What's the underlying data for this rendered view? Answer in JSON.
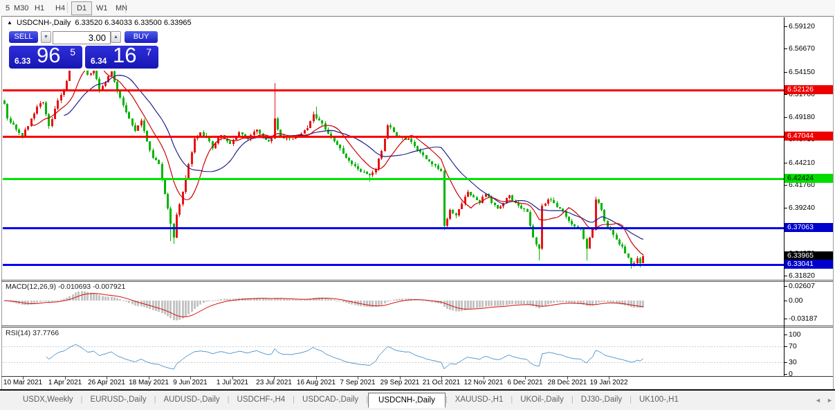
{
  "toolbar": {
    "timeframes": [
      {
        "label": "5",
        "active": false
      },
      {
        "label": "M30",
        "active": false
      },
      {
        "label": "H1",
        "active": false
      },
      {
        "label": "H4",
        "active": false
      },
      {
        "label": "D1",
        "active": true
      },
      {
        "label": "W1",
        "active": false
      },
      {
        "label": "MN",
        "active": false
      }
    ]
  },
  "header": {
    "collapse_icon": "▲",
    "symbol_title": "USDCNH-,Daily",
    "ohlc_quote": "6.33520 6.34033 6.33500 6.33965"
  },
  "trade_panel": {
    "sell_label": "SELL",
    "buy_label": "BUY",
    "volume": "3.00",
    "spin_down_icon": "▼",
    "spin_up_icon": "▲",
    "sell_price_small": "6.33",
    "sell_price_big": "96",
    "sell_price_sup": "5",
    "buy_price_small": "6.34",
    "buy_price_big": "16",
    "buy_price_sup": "7"
  },
  "price_axis": {
    "ticks": [
      "6.59120",
      "6.56670",
      "6.54150",
      "6.51700",
      "6.49180",
      "6.46730",
      "6.44210",
      "6.41760",
      "6.39240",
      "6.36790",
      "6.34270",
      "6.31820"
    ],
    "tags": [
      {
        "text": "6.52126",
        "bg": "#ee0000",
        "fg": "#ffffff"
      },
      {
        "text": "6.47044",
        "bg": "#ee0000",
        "fg": "#ffffff"
      },
      {
        "text": "6.42424",
        "bg": "#00dd00",
        "fg": "#000000"
      },
      {
        "text": "6.37063",
        "bg": "#0000cc",
        "fg": "#ffffff"
      },
      {
        "text": "6.33965",
        "bg": "#000000",
        "fg": "#ffffff"
      },
      {
        "text": "6.33041",
        "bg": "#0000cc",
        "fg": "#ffffff"
      }
    ]
  },
  "macd_panel": {
    "label": "MACD(12,26,9) -0.010693 -0.007921",
    "ticks": [
      "0.02607",
      "0.00",
      "-0.03187"
    ]
  },
  "rsi_panel": {
    "label": "RSI(14) 37.7766",
    "ticks": [
      "100",
      "70",
      "30",
      "0"
    ]
  },
  "date_axis": [
    "10 Mar 2021",
    "1 Apr 2021",
    "26 Apr 2021",
    "18 May 2021",
    "9 Jun 2021",
    "1 Jul 2021",
    "23 Jul 2021",
    "16 Aug 2021",
    "7 Sep 2021",
    "29 Sep 2021",
    "21 Oct 2021",
    "12 Nov 2021",
    "6 Dec 2021",
    "28 Dec 2021",
    "19 Jan 2022"
  ],
  "tabs": [
    {
      "label": "USDX,Weekly",
      "active": false
    },
    {
      "label": "EURUSD-,Daily",
      "active": false
    },
    {
      "label": "AUDUSD-,Daily",
      "active": false
    },
    {
      "label": "USDCHF-,H4",
      "active": false
    },
    {
      "label": "USDCAD-,Daily",
      "active": false
    },
    {
      "label": "USDCNH-,Daily",
      "active": true
    },
    {
      "label": "XAUUSD-,H1",
      "active": false
    },
    {
      "label": "UKOil-,Daily",
      "active": false
    },
    {
      "label": "DJ30-,Daily",
      "active": false
    },
    {
      "label": "UK100-,H1",
      "active": false
    }
  ],
  "tab_scroll": {
    "left_icon": "◄",
    "right_icon": "►"
  },
  "chart_data": {
    "type": "candlestick",
    "symbol": "USDCNH-",
    "timeframe": "Daily",
    "color_convention": "red=up, green=down",
    "bar_count": 216,
    "colors": {
      "up": "#e81212",
      "down": "#00b400",
      "ma_fast": "#cc0000",
      "ma_slow": "#20208e",
      "macd_hist": "#c4c4c4",
      "macd_signal": "#d40000",
      "rsi_line": "#4f94cd"
    },
    "moving_averages": [
      {
        "period": 10
      },
      {
        "period": 21
      }
    ],
    "levels": [
      {
        "price": 6.52126,
        "color": "#f40000"
      },
      {
        "price": 6.47044,
        "color": "#f40000"
      },
      {
        "price": 6.42424,
        "color": "#00e400"
      },
      {
        "price": 6.37063,
        "color": "#0000f0"
      },
      {
        "price": 6.33041,
        "color": "#0000f0"
      }
    ],
    "current_price": 6.33965,
    "price_anchors": [
      [
        0,
        6.506
      ],
      [
        1,
        6.49
      ],
      [
        4,
        6.478
      ],
      [
        6,
        6.47
      ],
      [
        9,
        6.49
      ],
      [
        11,
        6.503
      ],
      [
        13,
        6.508
      ],
      [
        15,
        6.482
      ],
      [
        18,
        6.51
      ],
      [
        20,
        6.52
      ],
      [
        22,
        6.545
      ],
      [
        24,
        6.572
      ],
      [
        26,
        6.558
      ],
      [
        28,
        6.538
      ],
      [
        30,
        6.545
      ],
      [
        32,
        6.52
      ],
      [
        34,
        6.53
      ],
      [
        36,
        6.542
      ],
      [
        38,
        6.52
      ],
      [
        40,
        6.505
      ],
      [
        42,
        6.49
      ],
      [
        44,
        6.477
      ],
      [
        46,
        6.488
      ],
      [
        48,
        6.465
      ],
      [
        50,
        6.447
      ],
      [
        52,
        6.44
      ],
      [
        54,
        6.408
      ],
      [
        56,
        6.375
      ],
      [
        57,
        6.36
      ],
      [
        58,
        6.385
      ],
      [
        60,
        6.41
      ],
      [
        62,
        6.44
      ],
      [
        64,
        6.468
      ],
      [
        66,
        6.475
      ],
      [
        68,
        6.47
      ],
      [
        70,
        6.458
      ],
      [
        73,
        6.472
      ],
      [
        76,
        6.462
      ],
      [
        79,
        6.475
      ],
      [
        82,
        6.468
      ],
      [
        85,
        6.478
      ],
      [
        87,
        6.47
      ],
      [
        89,
        6.465
      ],
      [
        90,
        6.468
      ],
      [
        91,
        6.49
      ],
      [
        92,
        6.478
      ],
      [
        94,
        6.468
      ],
      [
        97,
        6.468
      ],
      [
        99,
        6.472
      ],
      [
        102,
        6.48
      ],
      [
        104,
        6.495
      ],
      [
        105,
        6.49
      ],
      [
        106,
        6.488
      ],
      [
        108,
        6.478
      ],
      [
        111,
        6.465
      ],
      [
        114,
        6.452
      ],
      [
        117,
        6.44
      ],
      [
        120,
        6.432
      ],
      [
        123,
        6.428
      ],
      [
        125,
        6.435
      ],
      [
        127,
        6.455
      ],
      [
        129,
        6.483
      ],
      [
        131,
        6.475
      ],
      [
        133,
        6.47
      ],
      [
        136,
        6.468
      ],
      [
        138,
        6.46
      ],
      [
        141,
        6.45
      ],
      [
        144,
        6.44
      ],
      [
        146,
        6.435
      ],
      [
        147,
        6.433
      ],
      [
        148,
        6.373
      ],
      [
        150,
        6.39
      ],
      [
        152,
        6.384
      ],
      [
        154,
        6.397
      ],
      [
        156,
        6.41
      ],
      [
        158,
        6.404
      ],
      [
        160,
        6.398
      ],
      [
        162,
        6.408
      ],
      [
        164,
        6.398
      ],
      [
        166,
        6.392
      ],
      [
        168,
        6.398
      ],
      [
        170,
        6.406
      ],
      [
        172,
        6.398
      ],
      [
        174,
        6.392
      ],
      [
        176,
        6.388
      ],
      [
        177,
        6.373
      ],
      [
        178,
        6.36
      ],
      [
        179,
        6.352
      ],
      [
        180,
        6.348
      ],
      [
        181,
        6.395
      ],
      [
        183,
        6.402
      ],
      [
        185,
        6.398
      ],
      [
        187,
        6.392
      ],
      [
        190,
        6.378
      ],
      [
        192,
        6.372
      ],
      [
        194,
        6.37
      ],
      [
        196,
        6.348
      ],
      [
        197,
        6.36
      ],
      [
        198,
        6.368
      ],
      [
        199,
        6.402
      ],
      [
        201,
        6.39
      ],
      [
        202,
        6.378
      ],
      [
        204,
        6.368
      ],
      [
        206,
        6.358
      ],
      [
        208,
        6.35
      ],
      [
        210,
        6.338
      ],
      [
        211,
        6.33
      ],
      [
        213,
        6.337
      ],
      [
        214,
        6.332
      ],
      [
        215,
        6.3397
      ]
    ],
    "wick_overrides": {
      "24": {
        "h": 6.585
      },
      "56": {
        "l": 6.356
      },
      "57": {
        "l": 6.353
      },
      "91": {
        "h": 6.529
      },
      "105": {
        "h": 6.503
      },
      "123": {
        "l": 6.421
      },
      "148": {
        "l": 6.368
      },
      "180": {
        "l": 6.335
      },
      "196": {
        "l": 6.335
      },
      "199": {
        "h": 6.405
      },
      "211": {
        "l": 6.3265
      },
      "214": {
        "l": 6.327
      }
    },
    "macd": {
      "params": [
        12,
        26,
        9
      ],
      "current": -0.010693,
      "signal": -0.007921,
      "axis_max": 0.02607,
      "axis_min": -0.03187
    },
    "rsi": {
      "period": 14,
      "current": 37.7766,
      "overbought": 70,
      "oversold": 30
    }
  }
}
